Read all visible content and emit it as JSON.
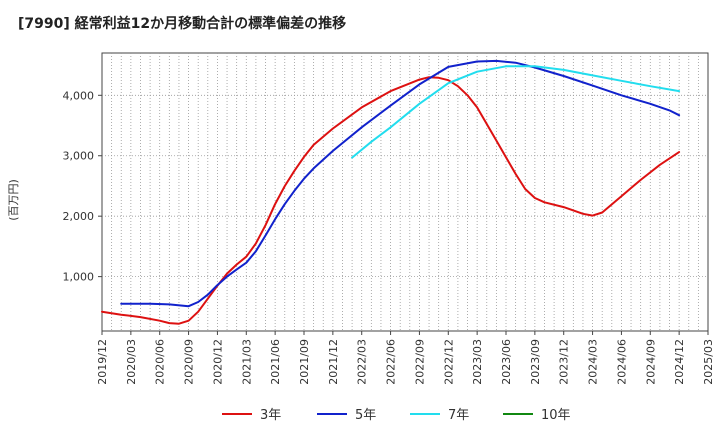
{
  "chart_data": {
    "type": "line",
    "title": "[7990]  経常利益12か月移動合計の標準偏差の推移",
    "ylabel": "(百万円)",
    "xlabel": "",
    "ylim": [
      100,
      4700
    ],
    "yticks": [
      1000,
      2000,
      3000,
      4000
    ],
    "ytick_labels": [
      "1,000",
      "2,000",
      "3,000",
      "4,000"
    ],
    "xlim": [
      "2019-12",
      "2025-03"
    ],
    "xtick_labels": [
      "2019/12",
      "2020/03",
      "2020/06",
      "2020/09",
      "2020/12",
      "2021/03",
      "2021/06",
      "2021/09",
      "2021/12",
      "2022/03",
      "2022/06",
      "2022/09",
      "2022/12",
      "2023/03",
      "2023/06",
      "2023/09",
      "2023/12",
      "2024/03",
      "2024/06",
      "2024/09",
      "2024/12",
      "2025/03"
    ],
    "grid": true,
    "legend_position": "bottom",
    "series": [
      {
        "name": "3年",
        "color": "#dd1111",
        "points": [
          [
            "2019-12",
            420
          ],
          [
            "2020-02",
            370
          ],
          [
            "2020-04",
            330
          ],
          [
            "2020-06",
            270
          ],
          [
            "2020-07",
            230
          ],
          [
            "2020-08",
            220
          ],
          [
            "2020-09",
            270
          ],
          [
            "2020-10",
            420
          ],
          [
            "2020-12",
            850
          ],
          [
            "2021-01",
            1050
          ],
          [
            "2021-02",
            1200
          ],
          [
            "2021-03",
            1330
          ],
          [
            "2021-04",
            1550
          ],
          [
            "2021-05",
            1850
          ],
          [
            "2021-06",
            2200
          ],
          [
            "2021-07",
            2500
          ],
          [
            "2021-08",
            2750
          ],
          [
            "2021-09",
            2980
          ],
          [
            "2021-10",
            3180
          ],
          [
            "2021-12",
            3450
          ],
          [
            "2022-03",
            3800
          ],
          [
            "2022-06",
            4070
          ],
          [
            "2022-09",
            4260
          ],
          [
            "2022-10",
            4300
          ],
          [
            "2022-11",
            4290
          ],
          [
            "2022-12",
            4250
          ],
          [
            "2023-01",
            4150
          ],
          [
            "2023-02",
            4000
          ],
          [
            "2023-03",
            3800
          ],
          [
            "2023-05",
            3250
          ],
          [
            "2023-07",
            2700
          ],
          [
            "2023-08",
            2450
          ],
          [
            "2023-09",
            2300
          ],
          [
            "2023-10",
            2230
          ],
          [
            "2023-12",
            2150
          ],
          [
            "2024-02",
            2040
          ],
          [
            "2024-03",
            2010
          ],
          [
            "2024-04",
            2060
          ],
          [
            "2024-06",
            2330
          ],
          [
            "2024-08",
            2600
          ],
          [
            "2024-10",
            2850
          ],
          [
            "2024-12",
            3060
          ]
        ]
      },
      {
        "name": "5年",
        "color": "#1122cc",
        "points": [
          [
            "2020-02",
            550
          ],
          [
            "2020-05",
            550
          ],
          [
            "2020-07",
            540
          ],
          [
            "2020-09",
            510
          ],
          [
            "2020-10",
            580
          ],
          [
            "2020-11",
            700
          ],
          [
            "2020-12",
            860
          ],
          [
            "2021-01",
            1000
          ],
          [
            "2021-02",
            1120
          ],
          [
            "2021-03",
            1230
          ],
          [
            "2021-04",
            1420
          ],
          [
            "2021-05",
            1680
          ],
          [
            "2021-06",
            1950
          ],
          [
            "2021-07",
            2200
          ],
          [
            "2021-08",
            2420
          ],
          [
            "2021-09",
            2620
          ],
          [
            "2021-10",
            2790
          ],
          [
            "2021-12",
            3080
          ],
          [
            "2022-03",
            3470
          ],
          [
            "2022-06",
            3830
          ],
          [
            "2022-09",
            4180
          ],
          [
            "2022-12",
            4470
          ],
          [
            "2023-03",
            4560
          ],
          [
            "2023-05",
            4570
          ],
          [
            "2023-07",
            4540
          ],
          [
            "2023-09",
            4460
          ],
          [
            "2023-12",
            4320
          ],
          [
            "2024-03",
            4160
          ],
          [
            "2024-06",
            4000
          ],
          [
            "2024-09",
            3860
          ],
          [
            "2024-11",
            3750
          ],
          [
            "2024-12",
            3670
          ]
        ]
      },
      {
        "name": "7年",
        "color": "#22ddee",
        "points": [
          [
            "2022-02",
            2970
          ],
          [
            "2022-04",
            3230
          ],
          [
            "2022-06",
            3470
          ],
          [
            "2022-09",
            3860
          ],
          [
            "2022-12",
            4200
          ],
          [
            "2023-03",
            4390
          ],
          [
            "2023-06",
            4480
          ],
          [
            "2023-09",
            4480
          ],
          [
            "2023-12",
            4420
          ],
          [
            "2024-03",
            4330
          ],
          [
            "2024-06",
            4240
          ],
          [
            "2024-09",
            4150
          ],
          [
            "2024-12",
            4070
          ]
        ]
      },
      {
        "name": "10年",
        "color": "#118811",
        "points": []
      }
    ]
  }
}
